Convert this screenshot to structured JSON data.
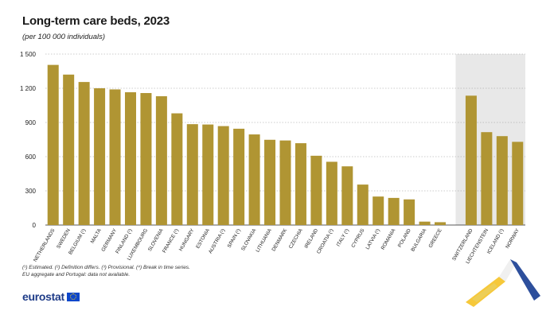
{
  "header": {
    "title": "Long-term care beds, 2023",
    "subtitle": "(per 100 000 individuals)"
  },
  "notes": [
    "(¹) Estimated. (²) Definition differs. (³) Provisional. (⁴) Break in time series.",
    "EU aggregate and Portugal: data not available."
  ],
  "branding": {
    "text": "eurostat"
  },
  "colors": {
    "bar": "#b09533",
    "shaded": "#e8e8e8",
    "grid": "#9a9a9a",
    "brand": "#1f3c88"
  },
  "chart_data": {
    "type": "bar",
    "title": "Long-term care beds, 2023",
    "subtitle": "(per 100 000 individuals)",
    "xlabel": "",
    "ylabel": "",
    "ylim": [
      0,
      1500
    ],
    "yticks": [
      0,
      300,
      600,
      900,
      1200,
      1500
    ],
    "ytick_labels": [
      "0",
      "300",
      "600",
      "900",
      "1 200",
      "1 500"
    ],
    "grid": true,
    "categories": [
      "NETHERLANDS",
      "SWEDEN",
      "BELGIUM (¹)",
      "MALTA",
      "GERMANY",
      "FINLAND (¹)",
      "LUXEMBOURG",
      "SLOVENIA",
      "FRANCE (¹)",
      "HUNGARY",
      "ESTONIA",
      "AUSTRIA (¹)",
      "SPAIN (¹)",
      "SLOVAKIA",
      "LITHUANIA",
      "DENMARK",
      "CZECHIA",
      "IRELAND",
      "CROATIA (¹)",
      "ITALY (¹)",
      "CYPRUS",
      "LATVIA (¹)",
      "ROMANIA",
      "POLAND",
      "BULGARIA",
      "GREECE",
      "",
      "SWITZERLAND",
      "LIECHTENSTEIN",
      "ICELAND (¹)",
      "NORWAY"
    ],
    "values": [
      1405,
      1320,
      1255,
      1200,
      1190,
      1165,
      1158,
      1130,
      980,
      885,
      882,
      868,
      845,
      795,
      748,
      742,
      718,
      608,
      555,
      515,
      355,
      250,
      238,
      225,
      30,
      25,
      null,
      1135,
      815,
      780,
      730
    ],
    "shaded_group": [
      "SWITZERLAND",
      "LIECHTENSTEIN",
      "ICELAND (¹)",
      "NORWAY"
    ]
  }
}
